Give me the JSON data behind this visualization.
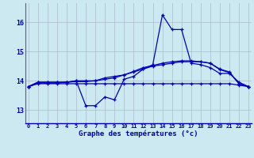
{
  "title": "Graphe des températures (°c)",
  "background_color": "#cce8f0",
  "grid_color": "#aabbcc",
  "line_color": "#0000bb",
  "x_labels": [
    "0",
    "1",
    "2",
    "3",
    "4",
    "5",
    "6",
    "7",
    "8",
    "9",
    "10",
    "11",
    "12",
    "13",
    "14",
    "15",
    "16",
    "17",
    "18",
    "19",
    "20",
    "21",
    "22",
    "23"
  ],
  "yticks": [
    13,
    14,
    15,
    16
  ],
  "ylim": [
    12.55,
    16.65
  ],
  "xlim": [
    -0.3,
    23.3
  ],
  "series": [
    [
      13.8,
      13.95,
      13.95,
      13.95,
      13.95,
      14.0,
      14.0,
      14.0,
      14.1,
      14.15,
      14.2,
      14.3,
      14.4,
      14.5,
      14.55,
      14.6,
      14.65,
      14.65,
      14.65,
      14.6,
      14.4,
      14.3,
      13.9,
      13.8
    ],
    [
      13.8,
      13.9,
      13.9,
      13.9,
      13.9,
      13.9,
      13.9,
      13.9,
      13.9,
      13.9,
      13.9,
      13.9,
      13.9,
      13.9,
      13.9,
      13.9,
      13.9,
      13.9,
      13.9,
      13.9,
      13.9,
      13.9,
      13.85,
      13.8
    ],
    [
      13.8,
      13.92,
      13.92,
      13.92,
      13.95,
      13.97,
      13.97,
      14.0,
      14.05,
      14.1,
      14.2,
      14.32,
      14.45,
      14.52,
      14.6,
      14.65,
      14.68,
      14.68,
      14.65,
      14.6,
      14.38,
      14.28,
      13.9,
      13.8
    ],
    [
      13.8,
      13.95,
      13.95,
      13.95,
      13.95,
      14.0,
      13.15,
      13.15,
      13.45,
      13.35,
      14.05,
      14.15,
      14.4,
      14.55,
      16.25,
      15.75,
      15.75,
      14.6,
      14.55,
      14.45,
      14.25,
      14.25,
      13.95,
      13.8
    ]
  ]
}
